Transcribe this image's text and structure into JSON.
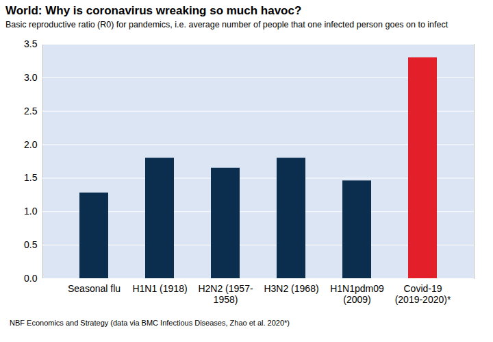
{
  "chart_data": {
    "type": "bar",
    "title": "World: Why is coronavirus wreaking so much havoc?",
    "subtitle": "Basic reproductive ratio (R0) for pandemics, i.e. average number of people that one infected person goes on to infect",
    "caption": "NBF Economics and Strategy (data via BMC Infectious Diseases, Zhao et al. 2020*)",
    "categories": [
      "Seasonal flu",
      "H1N1 (1918)",
      "H2N2 (1957-\n1958)",
      "H3N2 (1968)",
      "H1N1pdm09\n(2009)",
      "Covid-19\n(2019-2020)*"
    ],
    "values": [
      1.28,
      1.8,
      1.65,
      1.8,
      1.46,
      3.3
    ],
    "colors": [
      "#0b2e4f",
      "#0b2e4f",
      "#0b2e4f",
      "#0b2e4f",
      "#0b2e4f",
      "#e3202a"
    ],
    "ylim": [
      0,
      3.5
    ],
    "yticks": [
      {
        "value": 0,
        "label": "0.0"
      },
      0.5,
      {
        "value": 1,
        "label": "1.0"
      },
      1.5,
      {
        "value": 2,
        "label": "2.0"
      },
      2.5,
      {
        "value": 3,
        "label": "3.0"
      },
      3.5
    ],
    "grid": true
  }
}
